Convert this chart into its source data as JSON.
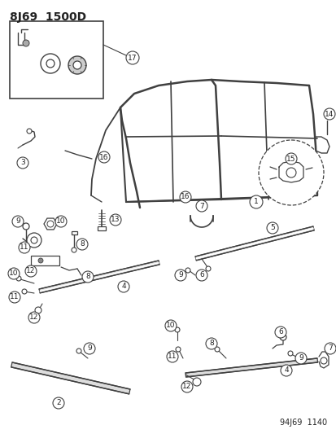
{
  "title": "8J69  1500D",
  "footer": "94J69  1140",
  "bg_color": "#ffffff",
  "line_color": "#404040",
  "text_color": "#222222",
  "title_fontsize": 10,
  "label_fontsize": 7,
  "footer_fontsize": 7,
  "figsize": [
    4.14,
    5.33
  ],
  "dpi": 100
}
